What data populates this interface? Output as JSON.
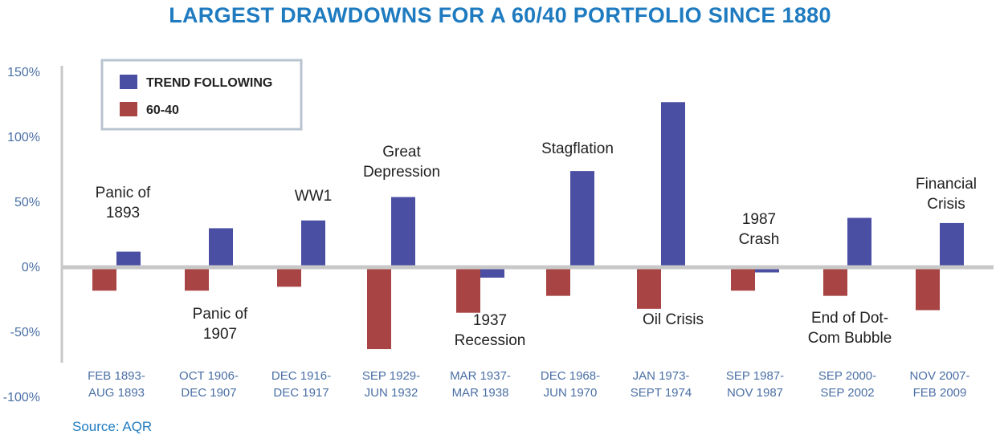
{
  "chart_data": {
    "type": "bar",
    "title": "LARGEST DRAWDOWNS FOR A 60/40 PORTFOLIO SINCE 1880",
    "categories": [
      [
        "FEB 1893-",
        "AUG 1893"
      ],
      [
        "OCT 1906-",
        "DEC 1907"
      ],
      [
        "DEC 1916-",
        "DEC 1917"
      ],
      [
        "SEP 1929-",
        "JUN 1932"
      ],
      [
        "MAR 1937-",
        "MAR 1938"
      ],
      [
        "DEC 1968-",
        "JUN 1970"
      ],
      [
        "JAN 1973-",
        "SEPT 1974"
      ],
      [
        "SEP 1987-",
        "NOV 1987"
      ],
      [
        "SEP 2000-",
        "SEP 2002"
      ],
      [
        "NOV 2007-",
        "FEB 2009"
      ]
    ],
    "events": [
      [
        "Panic of",
        "1893"
      ],
      [
        "Panic of",
        "1907"
      ],
      [
        "WW1"
      ],
      [
        "Great",
        "Depression"
      ],
      [
        "1937",
        "Recession"
      ],
      [
        "Stagflation"
      ],
      [
        "Oil Crisis"
      ],
      [
        "1987",
        "Crash"
      ],
      [
        "End of Dot-",
        "Com Bubble"
      ],
      [
        "Financial",
        "Crisis"
      ]
    ],
    "series": [
      {
        "name": "TREND FOLLOWING",
        "color": "#4a4fa3",
        "values": [
          12,
          30,
          36,
          54,
          -8,
          74,
          127,
          -4,
          38,
          34
        ]
      },
      {
        "name": "60-40",
        "color": "#a84444",
        "values": [
          -18,
          -18,
          -15,
          -63,
          -35,
          -22,
          -32,
          -18,
          -22,
          -33
        ]
      }
    ],
    "yticks": [
      "150%",
      "100%",
      "50%",
      "0%",
      "-50%",
      "-100%"
    ],
    "ylim": [
      -100,
      150
    ],
    "grid": false,
    "legend_position": "top-left",
    "source": "Source: AQR"
  }
}
